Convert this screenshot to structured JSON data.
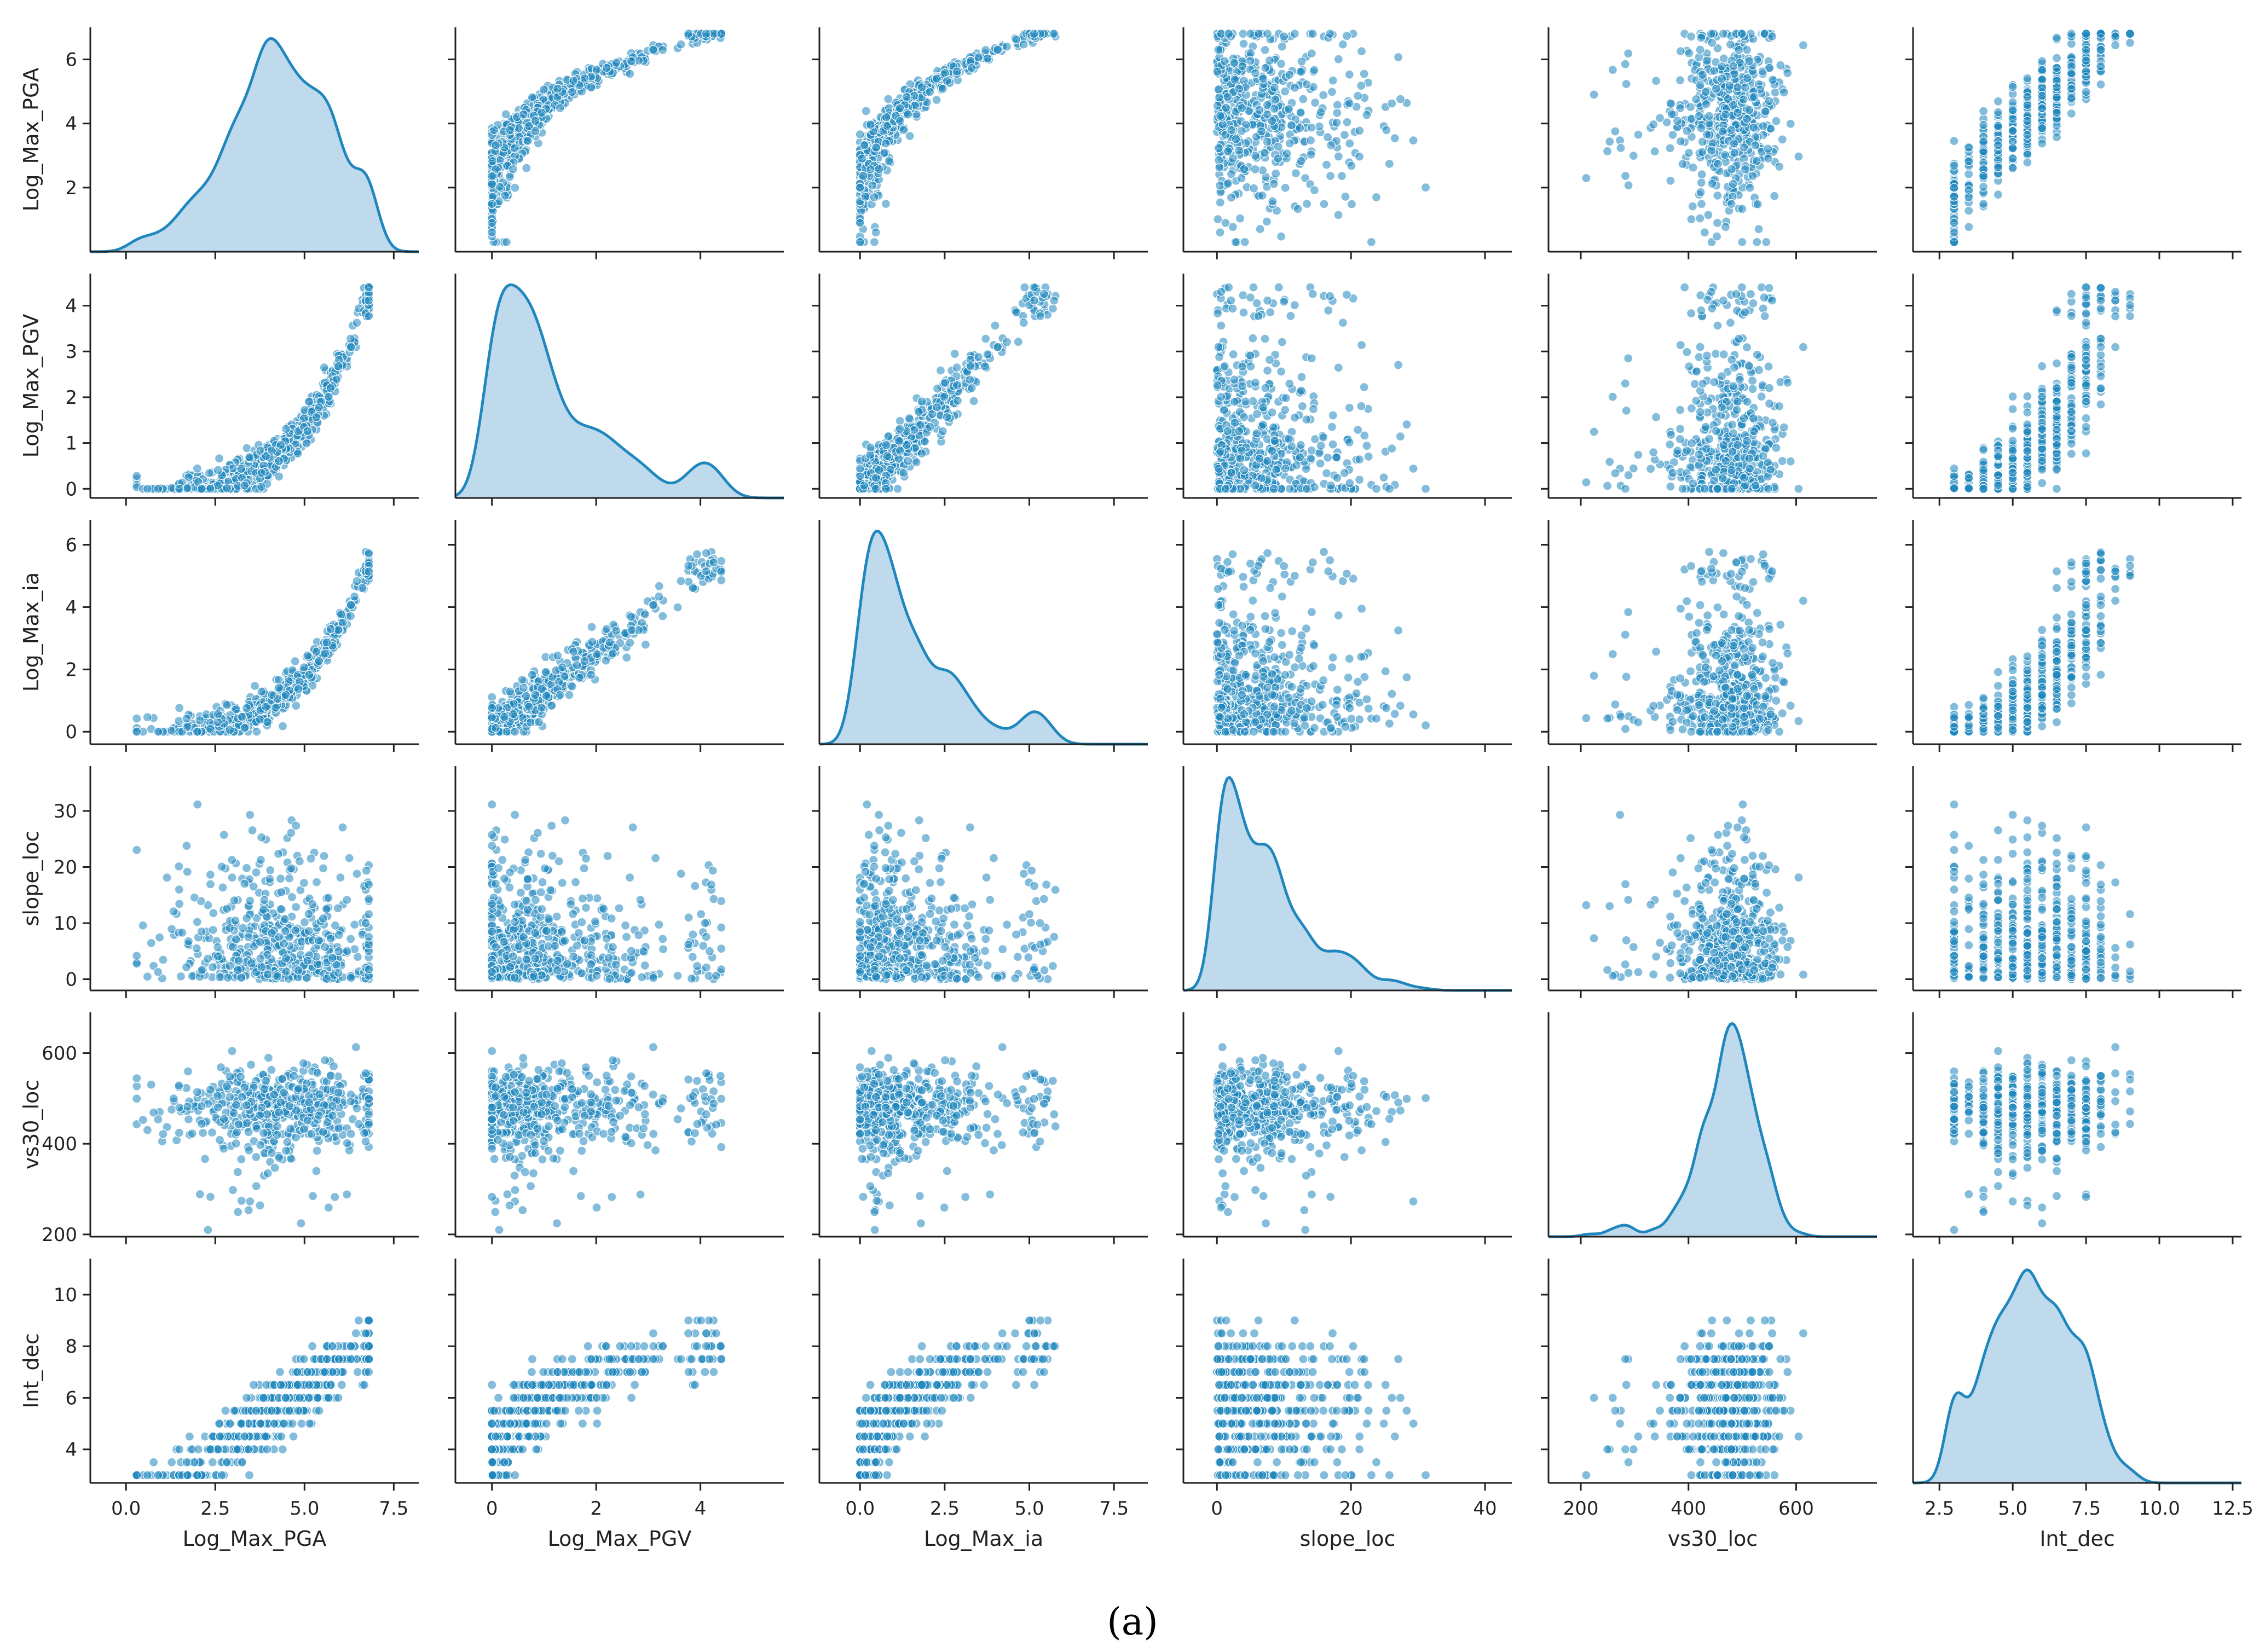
{
  "chart_data": {
    "type": "pairplot",
    "variables": [
      {
        "name": "Log_Max_PGA",
        "xlabel": "Log_Max_PGA",
        "range": [
          -1.0,
          8.2
        ],
        "xticks": [
          0.0,
          2.5,
          5.0,
          7.5
        ],
        "yticks": [
          2,
          4,
          6
        ],
        "yrange": [
          0.0,
          7.0
        ]
      },
      {
        "name": "Log_Max_PGV",
        "xlabel": "Log_Max_PGV",
        "range": [
          -0.7,
          5.6
        ],
        "xticks": [
          0,
          2,
          4
        ],
        "yticks": [
          0,
          1,
          2,
          3,
          4
        ],
        "yrange": [
          -0.2,
          4.7
        ]
      },
      {
        "name": "Log_Max_ia",
        "xlabel": "Log_Max_ia",
        "range": [
          -1.2,
          8.5
        ],
        "xticks": [
          0.0,
          2.5,
          5.0,
          7.5
        ],
        "yticks": [
          0,
          2,
          4,
          6
        ],
        "yrange": [
          -0.4,
          6.8
        ]
      },
      {
        "name": "slope_loc",
        "xlabel": "slope_loc",
        "range": [
          -5,
          44
        ],
        "xticks": [
          0,
          20,
          40
        ],
        "yticks": [
          0,
          10,
          20,
          30
        ],
        "yrange": [
          -2,
          38
        ]
      },
      {
        "name": "vs30_loc",
        "xlabel": "vs30_loc",
        "range": [
          140,
          750
        ],
        "xticks": [
          200,
          400,
          600
        ],
        "yticks": [
          200,
          400,
          600
        ],
        "yrange": [
          195,
          690
        ]
      },
      {
        "name": "Int_dec",
        "xlabel": "Int_dec",
        "range": [
          1.6,
          12.8
        ],
        "xticks": [
          2.5,
          5.0,
          7.5,
          10.0,
          12.5
        ],
        "yticks": [
          4,
          6,
          8,
          10
        ],
        "yrange": [
          2.7,
          11.4
        ]
      }
    ],
    "diagonal": "kde",
    "offdiagonal": "scatter",
    "n_points": 520,
    "color": "#1f87bd",
    "kde_fill": "#bcd8ec",
    "caption": "(a)"
  }
}
